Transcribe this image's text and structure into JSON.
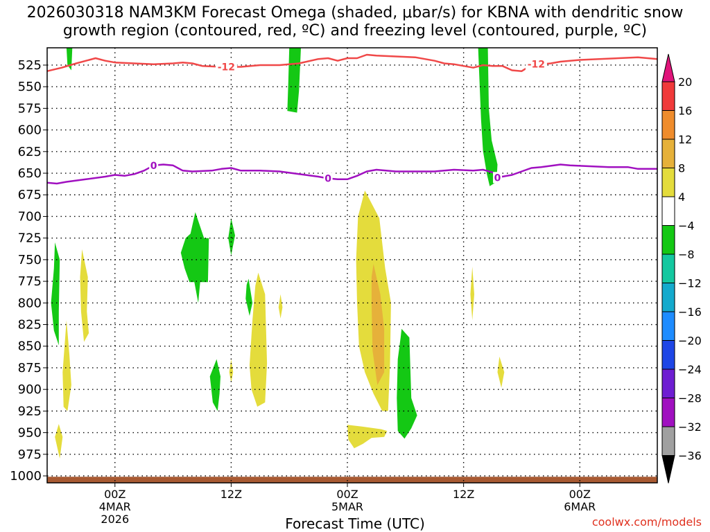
{
  "chart_data": {
    "type": "heatmap",
    "title_line1": "2026030318 NAM3KM Forecast Omega (shaded, μbar/s) for KBNA with dendritic snow",
    "title_line2": "growth region (contoured, red, ºC) and freezing level (contoured, purple, ºC)",
    "xlabel": "Forecast Time (UTC)",
    "ylabel": "",
    "credit": "coolwx.com/models",
    "x_range_hours": [
      -7,
      56
    ],
    "y_range_hpa": [
      505,
      1008
    ],
    "y_ticks": [
      "525",
      "550",
      "575",
      "600",
      "625",
      "650",
      "675",
      "700",
      "725",
      "750",
      "775",
      "800",
      "825",
      "850",
      "875",
      "900",
      "925",
      "950",
      "975",
      "1000"
    ],
    "y_tick_values": [
      525,
      550,
      575,
      600,
      625,
      650,
      675,
      700,
      725,
      750,
      775,
      800,
      825,
      850,
      875,
      900,
      925,
      950,
      975,
      1000
    ],
    "x_ticks": [
      {
        "hour": 0,
        "lines": [
          "00Z",
          "4MAR",
          "2026"
        ]
      },
      {
        "hour": 12,
        "lines": [
          "12Z"
        ]
      },
      {
        "hour": 24,
        "lines": [
          "00Z",
          "5MAR"
        ]
      },
      {
        "hour": 36,
        "lines": [
          "12Z"
        ]
      },
      {
        "hour": 48,
        "lines": [
          "00Z",
          "6MAR"
        ]
      }
    ],
    "colorbar": {
      "labels": [
        "20",
        "16",
        "12",
        "8",
        "4",
        "−4",
        "−8",
        "−12",
        "−16",
        "−20",
        "−24",
        "−28",
        "−32",
        "−36"
      ],
      "bins": [
        {
          "range": "16 to 20",
          "color": "#f03a3a"
        },
        {
          "range": "12 to 16",
          "color": "#ef8c2c"
        },
        {
          "range": "8 to 12",
          "color": "#e6b13a"
        },
        {
          "range": "4 to 8",
          "color": "#e4dc3c"
        },
        {
          "range": "-4 to 4",
          "color": "#ffffff"
        },
        {
          "range": "-8 to -4",
          "color": "#14c814"
        },
        {
          "range": "-12 to -8",
          "color": "#14c8a0"
        },
        {
          "range": "-16 to -12",
          "color": "#14aacd"
        },
        {
          "range": "-20 to -16",
          "color": "#1e8cff"
        },
        {
          "range": "-24 to -20",
          "color": "#1e46e6"
        },
        {
          "range": "-28 to -24",
          "color": "#6e1ed2"
        },
        {
          "range": "-32 to -28",
          "color": "#a010c0"
        },
        {
          "range": "-36 to -32",
          "color": "#a0a0a0"
        }
      ],
      "top_arrow_color": "#e0147a",
      "bottom_arrow_color": "#000000"
    },
    "series": [
      {
        "name": "-12 ºC isotherm (dendritic growth)",
        "color": "#f04848",
        "label": "-12",
        "label_points": [
          [
            11.5,
            527
          ],
          [
            43.5,
            524
          ]
        ],
        "points": [
          [
            -7,
            532
          ],
          [
            -5.5,
            528
          ],
          [
            -4,
            523
          ],
          [
            -2,
            517
          ],
          [
            -1,
            520
          ],
          [
            0,
            522
          ],
          [
            2,
            523
          ],
          [
            4,
            524
          ],
          [
            6,
            523
          ],
          [
            7,
            522
          ],
          [
            8,
            523
          ],
          [
            9,
            526
          ],
          [
            11,
            527
          ],
          [
            13,
            527
          ],
          [
            15,
            525
          ],
          [
            17,
            525
          ],
          [
            19,
            523
          ],
          [
            21,
            518
          ],
          [
            22,
            517
          ],
          [
            23,
            520
          ],
          [
            24,
            517
          ],
          [
            25,
            517
          ],
          [
            26,
            513
          ],
          [
            27,
            514
          ],
          [
            29,
            515
          ],
          [
            31,
            516
          ],
          [
            33,
            520
          ],
          [
            34,
            523
          ],
          [
            35,
            524
          ],
          [
            36,
            526
          ],
          [
            37,
            528
          ],
          [
            38,
            525
          ],
          [
            39,
            526
          ],
          [
            40,
            526
          ],
          [
            41,
            531
          ],
          [
            42,
            532
          ],
          [
            43,
            525
          ],
          [
            44,
            524
          ],
          [
            45,
            523
          ],
          [
            46,
            521
          ],
          [
            48,
            519
          ],
          [
            50,
            518
          ],
          [
            52,
            517
          ],
          [
            54,
            516
          ],
          [
            56,
            518
          ]
        ]
      },
      {
        "name": "0 ºC freezing level",
        "color": "#a010c0",
        "label": "0",
        "label_points": [
          [
            4,
            641
          ],
          [
            22,
            656
          ],
          [
            39.5,
            655
          ]
        ],
        "points": [
          [
            -7,
            661
          ],
          [
            -6,
            662
          ],
          [
            -5,
            660
          ],
          [
            -3,
            657
          ],
          [
            -1,
            654
          ],
          [
            0,
            652
          ],
          [
            1,
            653
          ],
          [
            2,
            651
          ],
          [
            3,
            647
          ],
          [
            4,
            641
          ],
          [
            5,
            640
          ],
          [
            6,
            641
          ],
          [
            7,
            647
          ],
          [
            8,
            648
          ],
          [
            10,
            647
          ],
          [
            11,
            645
          ],
          [
            12,
            644
          ],
          [
            13,
            647
          ],
          [
            15,
            647
          ],
          [
            17,
            648
          ],
          [
            19,
            651
          ],
          [
            21,
            654
          ],
          [
            22,
            656
          ],
          [
            23,
            657
          ],
          [
            24,
            657
          ],
          [
            25,
            653
          ],
          [
            26,
            648
          ],
          [
            27,
            646
          ],
          [
            29,
            648
          ],
          [
            31,
            648
          ],
          [
            33,
            648
          ],
          [
            35,
            646
          ],
          [
            37,
            647
          ],
          [
            38,
            646
          ],
          [
            39,
            649
          ],
          [
            40,
            654
          ],
          [
            41,
            652
          ],
          [
            42,
            648
          ],
          [
            43,
            644
          ],
          [
            44,
            643
          ],
          [
            46,
            640
          ],
          [
            47,
            641
          ],
          [
            49,
            642
          ],
          [
            51,
            643
          ],
          [
            53,
            643
          ],
          [
            54,
            645
          ],
          [
            56,
            645
          ]
        ]
      }
    ],
    "shaded_regions": [
      {
        "name": "ascent",
        "color": "#14c814",
        "points": [
          [
            -5,
            505
          ],
          [
            -4.4,
            505
          ],
          [
            -4.5,
            531
          ],
          [
            -4.9,
            525
          ]
        ]
      },
      {
        "name": "ascent",
        "color": "#14c814",
        "points": [
          [
            18,
            505
          ],
          [
            19.2,
            505
          ],
          [
            19,
            555
          ],
          [
            18.8,
            580
          ],
          [
            17.8,
            578
          ],
          [
            17.9,
            545
          ]
        ]
      },
      {
        "name": "ascent",
        "color": "#14c814",
        "points": [
          [
            37.5,
            505
          ],
          [
            38.5,
            505
          ],
          [
            38.6,
            575
          ],
          [
            38.9,
            612
          ],
          [
            39.5,
            640
          ],
          [
            39.4,
            660
          ],
          [
            38.7,
            665
          ],
          [
            38.4,
            651
          ],
          [
            38,
            624
          ],
          [
            37.8,
            588
          ]
        ]
      },
      {
        "name": "ascent",
        "color": "#14c814",
        "points": [
          [
            -6.2,
            730
          ],
          [
            -5.7,
            750
          ],
          [
            -5.8,
            810
          ],
          [
            -5.8,
            849
          ],
          [
            -6.3,
            832
          ],
          [
            -6.6,
            800
          ],
          [
            -6.3,
            760
          ]
        ]
      },
      {
        "name": "ascent",
        "color": "#14c814",
        "points": [
          [
            8.3,
            695
          ],
          [
            9.2,
            725
          ],
          [
            9.7,
            725
          ],
          [
            9.6,
            776
          ],
          [
            8.8,
            776
          ],
          [
            8.6,
            800
          ],
          [
            8.2,
            776
          ],
          [
            7.7,
            776
          ],
          [
            7.2,
            760
          ],
          [
            6.8,
            742
          ],
          [
            7.3,
            725
          ],
          [
            7.8,
            720
          ]
        ]
      },
      {
        "name": "ascent",
        "color": "#14c814",
        "points": [
          [
            12,
            702
          ],
          [
            12.4,
            722
          ],
          [
            12,
            745
          ],
          [
            11.7,
            725
          ]
        ]
      },
      {
        "name": "ascent",
        "color": "#14c814",
        "points": [
          [
            13.8,
            772
          ],
          [
            14.2,
            800
          ],
          [
            13.9,
            815
          ],
          [
            13.5,
            795
          ],
          [
            13.6,
            779
          ]
        ]
      },
      {
        "name": "ascent",
        "color": "#14c814",
        "points": [
          [
            10.5,
            865
          ],
          [
            10.9,
            885
          ],
          [
            10.8,
            905
          ],
          [
            10.6,
            925
          ],
          [
            10.1,
            915
          ],
          [
            9.8,
            885
          ]
        ]
      },
      {
        "name": "ascent",
        "color": "#14c814",
        "points": [
          [
            29.6,
            830
          ],
          [
            30.4,
            840
          ],
          [
            30.5,
            875
          ],
          [
            30.6,
            910
          ],
          [
            31.2,
            930
          ],
          [
            30.6,
            945
          ],
          [
            29.9,
            957
          ],
          [
            29.2,
            948
          ],
          [
            29.1,
            910
          ],
          [
            29.2,
            865
          ],
          [
            29.5,
            840
          ]
        ]
      },
      {
        "name": "sinking",
        "color": "#e4dc3c",
        "points": [
          [
            -3.4,
            738
          ],
          [
            -2.8,
            770
          ],
          [
            -2.9,
            810
          ],
          [
            -2.7,
            835
          ],
          [
            -3.2,
            845
          ],
          [
            -3.5,
            810
          ],
          [
            -3.6,
            770
          ]
        ]
      },
      {
        "name": "sinking",
        "color": "#e4dc3c",
        "points": [
          [
            -5,
            820
          ],
          [
            -4.7,
            860
          ],
          [
            -4.5,
            895
          ],
          [
            -4.9,
            925
          ],
          [
            -5.3,
            920
          ],
          [
            -5.4,
            880
          ],
          [
            -5.2,
            850
          ]
        ]
      },
      {
        "name": "sinking",
        "color": "#e4dc3c",
        "points": [
          [
            -5.8,
            940
          ],
          [
            -5.4,
            955
          ],
          [
            -5.7,
            980
          ],
          [
            -6.2,
            955
          ]
        ]
      },
      {
        "name": "sinking",
        "color": "#e4dc3c",
        "points": [
          [
            14.8,
            765
          ],
          [
            15.5,
            790
          ],
          [
            15.7,
            870
          ],
          [
            15.5,
            915
          ],
          [
            14.7,
            920
          ],
          [
            14.1,
            900
          ],
          [
            13.9,
            872
          ],
          [
            14.2,
            820
          ],
          [
            14.5,
            780
          ]
        ]
      },
      {
        "name": "sinking",
        "color": "#e4dc3c",
        "points": [
          [
            12,
            865
          ],
          [
            12.2,
            880
          ],
          [
            12,
            892
          ],
          [
            11.8,
            880
          ]
        ]
      },
      {
        "name": "sinking",
        "color": "#e4dc3c",
        "points": [
          [
            17.1,
            790
          ],
          [
            17.3,
            805
          ],
          [
            17.1,
            818
          ],
          [
            16.9,
            805
          ]
        ]
      },
      {
        "name": "sinking",
        "color": "#e4dc3c",
        "points": [
          [
            25.8,
            670
          ],
          [
            27.3,
            702
          ],
          [
            27.9,
            760
          ],
          [
            28.5,
            800
          ],
          [
            28.4,
            870
          ],
          [
            28.2,
            925
          ],
          [
            27.6,
            925
          ],
          [
            26.7,
            905
          ],
          [
            25.8,
            880
          ],
          [
            25.2,
            850
          ],
          [
            25,
            800
          ],
          [
            24.9,
            750
          ],
          [
            25.1,
            700
          ]
        ]
      },
      {
        "name": "sinking",
        "color": "#e4dc3c",
        "points": [
          [
            24,
            941
          ],
          [
            25.5,
            943
          ],
          [
            27.5,
            946
          ],
          [
            28.1,
            948
          ],
          [
            27.8,
            955
          ],
          [
            26.5,
            956
          ],
          [
            25.6,
            963
          ],
          [
            24.7,
            968
          ],
          [
            24.1,
            958
          ]
        ]
      },
      {
        "name": "sinking",
        "color": "#e4dc3c",
        "points": [
          [
            36.9,
            758
          ],
          [
            37.1,
            790
          ],
          [
            36.9,
            820
          ],
          [
            36.7,
            790
          ]
        ]
      },
      {
        "name": "sinking",
        "color": "#e4dc3c",
        "points": [
          [
            39.7,
            862
          ],
          [
            40.2,
            880
          ],
          [
            39.9,
            898
          ],
          [
            39.5,
            880
          ]
        ]
      },
      {
        "name": "moderate sinking",
        "color": "#e6b13a",
        "points": [
          [
            26.7,
            755
          ],
          [
            27.4,
            790
          ],
          [
            27.8,
            830
          ],
          [
            27.8,
            880
          ],
          [
            27.1,
            895
          ],
          [
            26.6,
            855
          ],
          [
            26.5,
            800
          ],
          [
            26.5,
            770
          ]
        ]
      }
    ],
    "terrain": {
      "color": "#a85a32",
      "surface_hpa": 1001,
      "bottom_hpa": 1008
    }
  }
}
